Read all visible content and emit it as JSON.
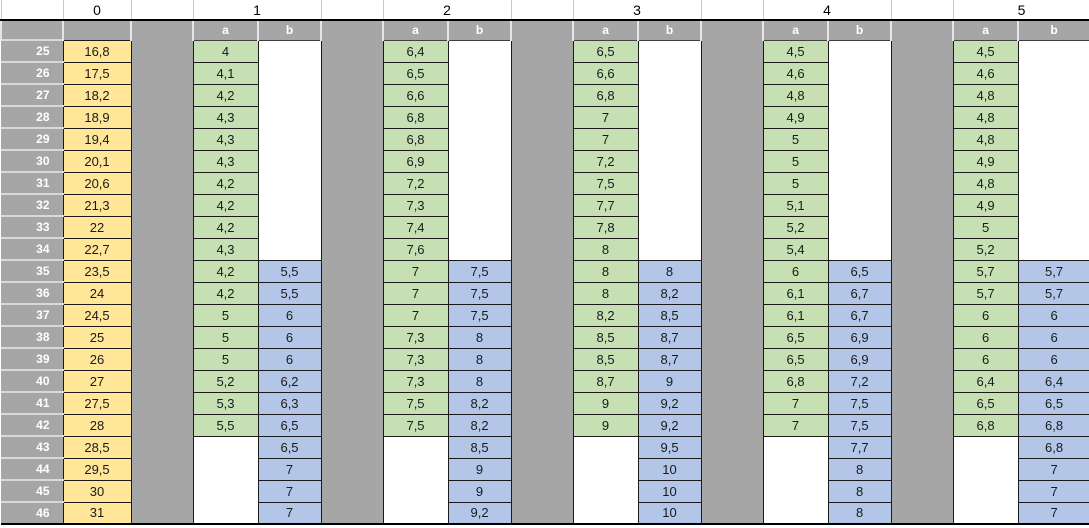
{
  "app": {
    "type": "spreadsheet-table"
  },
  "colors": {
    "column0_fill": "#ffe699",
    "a_column_fill": "#c6e0b4",
    "b_column_fill": "#b4c6e7",
    "header_fill": "#a6a6a6",
    "header_text": "#ffffff",
    "cell_border": "#1a1a1a"
  },
  "table": {
    "corner_label": "",
    "group_headers": [
      "0",
      "1",
      "2",
      "3",
      "4",
      "5"
    ],
    "sub_headers": [
      "a",
      "b"
    ],
    "rows": [
      {
        "n": "25",
        "c": [
          "16,8",
          "4",
          "",
          "6,4",
          "",
          "6,5",
          "",
          "4,5",
          "",
          "4,5",
          ""
        ]
      },
      {
        "n": "26",
        "c": [
          "17,5",
          "4,1",
          "",
          "6,5",
          "",
          "6,6",
          "",
          "4,6",
          "",
          "4,6",
          ""
        ]
      },
      {
        "n": "27",
        "c": [
          "18,2",
          "4,2",
          "",
          "6,6",
          "",
          "6,8",
          "",
          "4,8",
          "",
          "4,8",
          ""
        ]
      },
      {
        "n": "28",
        "c": [
          "18,9",
          "4,3",
          "",
          "6,8",
          "",
          "7",
          "",
          "4,9",
          "",
          "4,8",
          ""
        ]
      },
      {
        "n": "29",
        "c": [
          "19,4",
          "4,3",
          "",
          "6,8",
          "",
          "7",
          "",
          "5",
          "",
          "4,8",
          ""
        ]
      },
      {
        "n": "30",
        "c": [
          "20,1",
          "4,3",
          "",
          "6,9",
          "",
          "7,2",
          "",
          "5",
          "",
          "4,9",
          ""
        ]
      },
      {
        "n": "31",
        "c": [
          "20,6",
          "4,2",
          "",
          "7,2",
          "",
          "7,5",
          "",
          "5",
          "",
          "4,8",
          ""
        ]
      },
      {
        "n": "32",
        "c": [
          "21,3",
          "4,2",
          "",
          "7,3",
          "",
          "7,7",
          "",
          "5,1",
          "",
          "4,9",
          ""
        ]
      },
      {
        "n": "33",
        "c": [
          "22",
          "4,2",
          "",
          "7,4",
          "",
          "7,8",
          "",
          "5,2",
          "",
          "5",
          ""
        ]
      },
      {
        "n": "34",
        "c": [
          "22,7",
          "4,3",
          "",
          "7,6",
          "",
          "8",
          "",
          "5,4",
          "",
          "5,2",
          ""
        ]
      },
      {
        "n": "35",
        "c": [
          "23,5",
          "4,2",
          "5,5",
          "7",
          "7,5",
          "8",
          "8",
          "6",
          "6,5",
          "5,7",
          "5,7"
        ]
      },
      {
        "n": "36",
        "c": [
          "24",
          "4,2",
          "5,5",
          "7",
          "7,5",
          "8",
          "8,2",
          "6,1",
          "6,7",
          "5,7",
          "5,7"
        ]
      },
      {
        "n": "37",
        "c": [
          "24,5",
          "5",
          "6",
          "7",
          "7,5",
          "8,2",
          "8,5",
          "6,1",
          "6,7",
          "6",
          "6"
        ]
      },
      {
        "n": "38",
        "c": [
          "25",
          "5",
          "6",
          "7,3",
          "8",
          "8,5",
          "8,7",
          "6,5",
          "6,9",
          "6",
          "6"
        ]
      },
      {
        "n": "39",
        "c": [
          "26",
          "5",
          "6",
          "7,3",
          "8",
          "8,5",
          "8,7",
          "6,5",
          "6,9",
          "6",
          "6"
        ]
      },
      {
        "n": "40",
        "c": [
          "27",
          "5,2",
          "6,2",
          "7,3",
          "8",
          "8,7",
          "9",
          "6,8",
          "7,2",
          "6,4",
          "6,4"
        ]
      },
      {
        "n": "41",
        "c": [
          "27,5",
          "5,3",
          "6,3",
          "7,5",
          "8,2",
          "9",
          "9,2",
          "7",
          "7,5",
          "6,5",
          "6,5"
        ]
      },
      {
        "n": "42",
        "c": [
          "28",
          "5,5",
          "6,5",
          "7,5",
          "8,2",
          "9",
          "9,2",
          "7",
          "7,5",
          "6,8",
          "6,8"
        ]
      },
      {
        "n": "43",
        "c": [
          "28,5",
          "",
          "6,5",
          "",
          "8,5",
          "",
          "9,5",
          "",
          "7,7",
          "",
          "6,8"
        ]
      },
      {
        "n": "44",
        "c": [
          "29,5",
          "",
          "7",
          "",
          "9",
          "",
          "10",
          "",
          "8",
          "",
          "7"
        ]
      },
      {
        "n": "45",
        "c": [
          "30",
          "",
          "7",
          "",
          "9",
          "",
          "10",
          "",
          "8",
          "",
          "7"
        ]
      },
      {
        "n": "46",
        "c": [
          "31",
          "",
          "7",
          "",
          "9,2",
          "",
          "10",
          "",
          "8",
          "",
          "7"
        ]
      }
    ]
  }
}
